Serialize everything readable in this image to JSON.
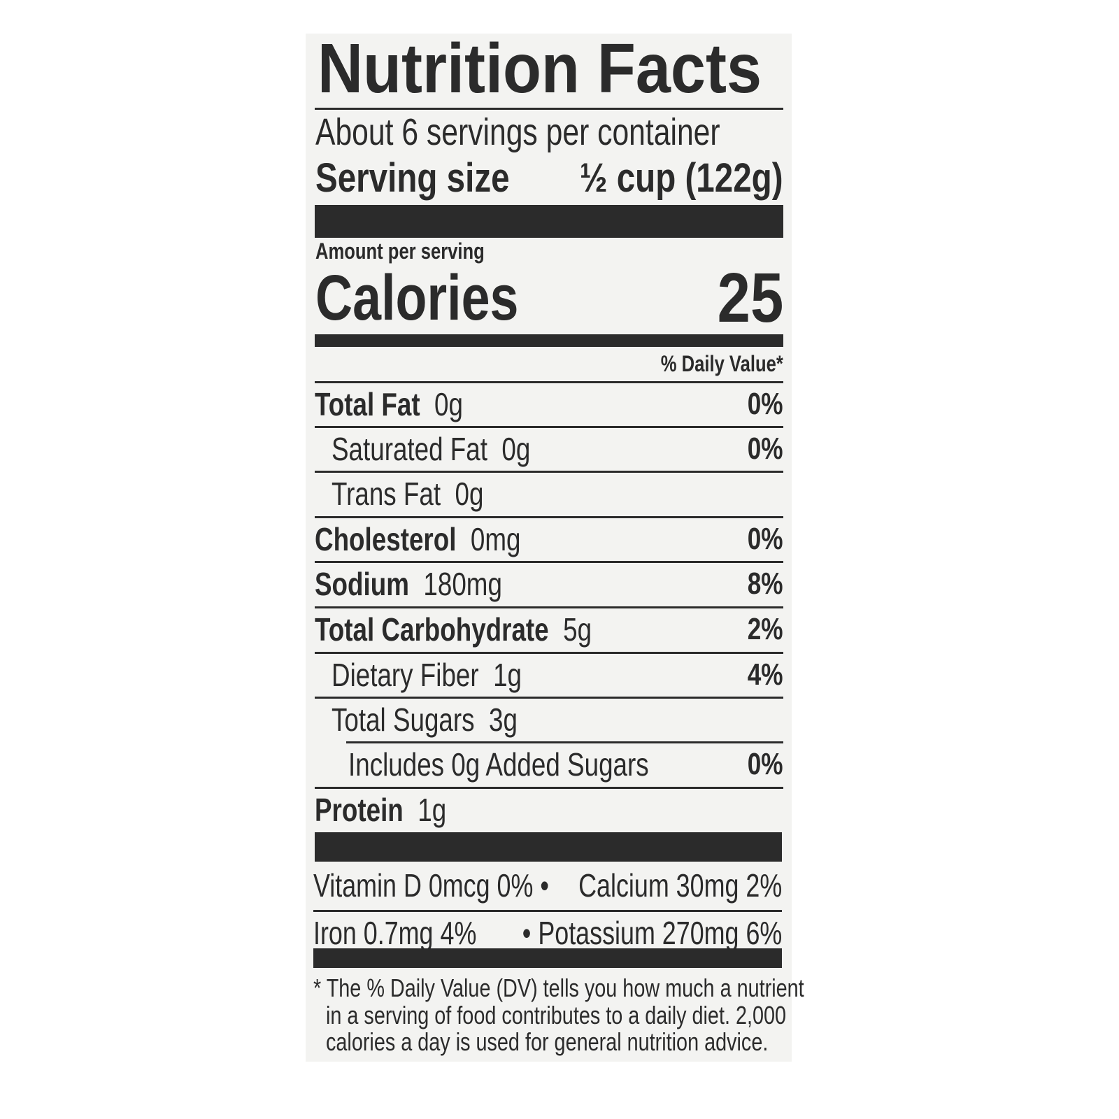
{
  "title": "Nutrition Facts",
  "servings_per_container": "About 6 servings per container",
  "serving_size": {
    "label": "Serving size",
    "value": "½ cup (122g)"
  },
  "amount_per_serving": "Amount per serving",
  "calories": {
    "label": "Calories",
    "value": "25"
  },
  "daily_value_header": "% Daily Value*",
  "nutrients": [
    {
      "name": "Total Fat",
      "amount": "0g",
      "dv": "0%",
      "bold": true,
      "indent": 0
    },
    {
      "name": "Saturated Fat",
      "amount": "0g",
      "dv": "0%",
      "bold": false,
      "indent": 1
    },
    {
      "name": "Trans Fat",
      "amount": "0g",
      "dv": "",
      "bold": false,
      "indent": 1
    },
    {
      "name": "Cholesterol",
      "amount": "0mg",
      "dv": "0%",
      "bold": true,
      "indent": 0
    },
    {
      "name": "Sodium",
      "amount": "180mg",
      "dv": "8%",
      "bold": true,
      "indent": 0
    },
    {
      "name": "Total Carbohydrate",
      "amount": "5g",
      "dv": "2%",
      "bold": true,
      "indent": 0
    },
    {
      "name": "Dietary Fiber",
      "amount": "1g",
      "dv": "4%",
      "bold": false,
      "indent": 1
    },
    {
      "name": "Total Sugars",
      "amount": "3g",
      "dv": "",
      "bold": false,
      "indent": 1
    },
    {
      "name": "Includes 0g Added Sugars",
      "amount": "",
      "dv": "0%",
      "bold": false,
      "indent": 2
    },
    {
      "name": "Protein",
      "amount": "1g",
      "dv": "",
      "bold": true,
      "indent": 0
    }
  ],
  "vitamins": [
    {
      "left": "Vitamin D  0mcg  0%  •",
      "right": "Calcium  30mg  2%"
    },
    {
      "left": "Iron  0.7mg  4%",
      "right": "• Potassium  270mg  6%"
    }
  ],
  "footnote": [
    "* The % Daily Value (DV) tells you how much a nutrient",
    "in a serving of food contributes to a daily diet. 2,000",
    "calories a day is used for general nutrition advice."
  ]
}
